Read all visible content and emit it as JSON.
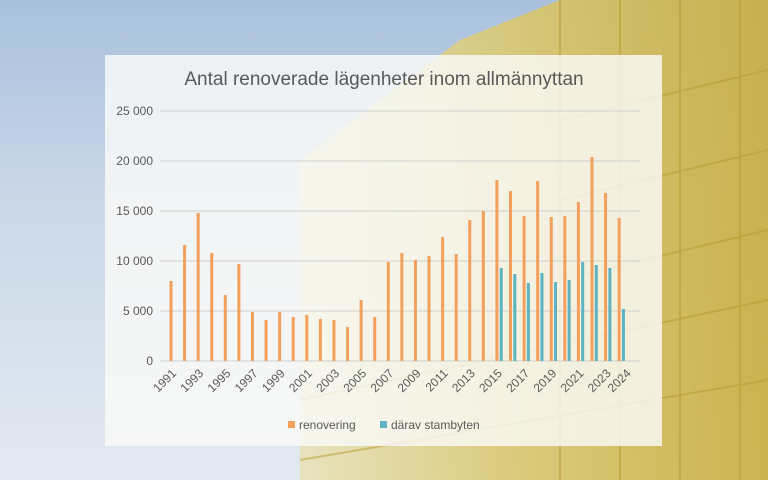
{
  "chart_data": {
    "type": "bar",
    "title": "Antal renoverade lägenheter inom allmännyttan",
    "xlabel": "",
    "ylabel": "",
    "ylim": [
      0,
      25000
    ],
    "y_ticks": [
      0,
      5000,
      10000,
      15000,
      20000,
      25000
    ],
    "y_tick_labels": [
      "0",
      "5 000",
      "10 000",
      "15 000",
      "20 000",
      "25 000"
    ],
    "categories": [
      "1991",
      "1992",
      "1993",
      "1994",
      "1995",
      "1996",
      "1997",
      "1998",
      "1999",
      "2000",
      "2001",
      "2002",
      "2003",
      "2004",
      "2005",
      "2006",
      "2007",
      "2008",
      "2009",
      "2010",
      "2011",
      "2012",
      "2013",
      "2014",
      "2015",
      "2016",
      "2017",
      "2018",
      "2019",
      "2020",
      "2021",
      "2022",
      "2023",
      "2024"
    ],
    "x_tick_labels": [
      "1991",
      "1993",
      "1995",
      "1997",
      "1999",
      "2001",
      "2003",
      "2005",
      "2007",
      "2009",
      "2011",
      "2013",
      "2015",
      "2017",
      "2019",
      "2021",
      "2023",
      "2024"
    ],
    "grid": true,
    "legend_position": "bottom",
    "series": [
      {
        "name": "renovering",
        "color": "#f2a05c",
        "values": [
          8000,
          11600,
          14800,
          10800,
          6600,
          9700,
          4900,
          4100,
          4900,
          4400,
          4600,
          4200,
          4100,
          3400,
          6100,
          4400,
          9900,
          10800,
          10100,
          10500,
          12400,
          10700,
          14100,
          15000,
          18100,
          17000,
          14500,
          18000,
          14400,
          14500,
          15900,
          20400,
          16800,
          14300
        ]
      },
      {
        "name": "därav stambyten",
        "color": "#5db3bf",
        "values": [
          null,
          null,
          null,
          null,
          null,
          null,
          null,
          null,
          null,
          null,
          null,
          null,
          null,
          null,
          null,
          null,
          null,
          null,
          null,
          null,
          null,
          null,
          null,
          null,
          9300,
          8700,
          7800,
          8800,
          7900,
          8100,
          9900,
          9600,
          9300,
          5200
        ]
      }
    ]
  }
}
